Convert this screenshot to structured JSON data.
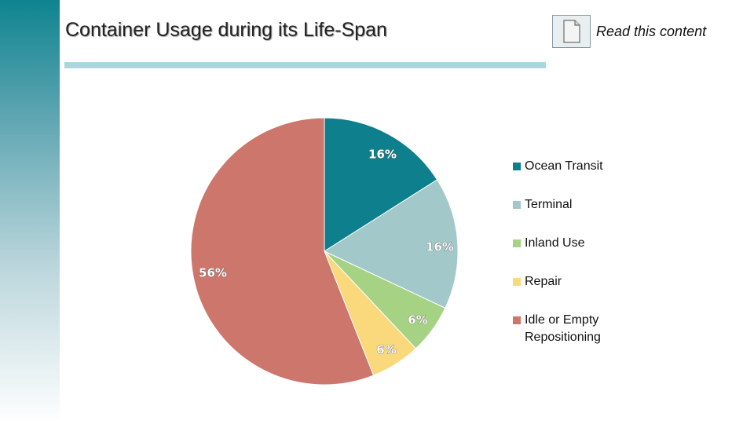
{
  "slide": {
    "title": "Container Usage during its Life-Span",
    "read_link": "Read this content"
  },
  "icons": {
    "document": "document-icon"
  },
  "colors": {
    "sidebar_top": "#0e8490",
    "title_rule": "#abd5df"
  },
  "chart_data": {
    "type": "pie",
    "title": "",
    "legend_position": "right",
    "start_angle_deg": 0,
    "direction": "clockwise",
    "slices": [
      {
        "name": "Ocean Transit",
        "value": 16,
        "label": "16%",
        "color": "#0e7f8c"
      },
      {
        "name": "Terminal",
        "value": 16,
        "label": "16%",
        "color": "#a2c8ca"
      },
      {
        "name": "Inland Use",
        "value": 6,
        "label": "6%",
        "color": "#a6d284"
      },
      {
        "name": "Repair",
        "value": 6,
        "label": "6%",
        "color": "#f9d97c"
      },
      {
        "name": "Idle or Empty Repositioning",
        "value": 56,
        "label": "56%",
        "color": "#cd766c"
      }
    ]
  }
}
